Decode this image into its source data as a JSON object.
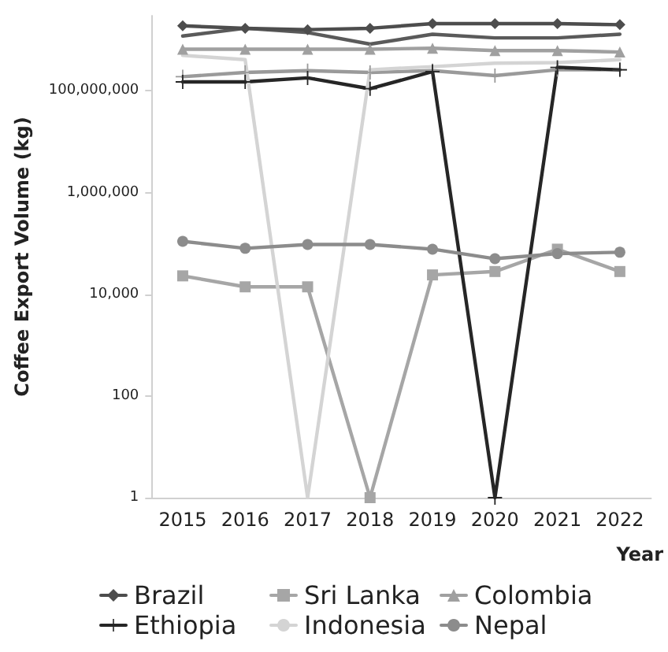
{
  "chart_data": {
    "type": "line",
    "xlabel": "Year",
    "ylabel": "Coffee Export Volume (kg)",
    "categories": [
      "2015",
      "2016",
      "2017",
      "2018",
      "2019",
      "2020",
      "2021",
      "2022"
    ],
    "log": true,
    "ylim": [
      1,
      3000000000
    ],
    "yticks": [
      1,
      100,
      {
        "value": 10000,
        "label": "10,000"
      },
      {
        "value": 1000000,
        "label": "1,000,000"
      },
      {
        "value": 100000000,
        "label": "100,000,000"
      }
    ],
    "grid": false,
    "legend": "bottom",
    "series": [
      {
        "color": "#5a5a5a",
        "marker": "none",
        "values": [
          1200000000,
          1700000000,
          1400000000,
          830000000,
          1300000000,
          1100000000,
          1100000000,
          1300000000
        ]
      },
      {
        "color": "#9a9a9a",
        "marker": "cross",
        "values": [
          190000000,
          230000000,
          250000000,
          230000000,
          250000000,
          200000000,
          260000000,
          260000000
        ]
      },
      {
        "name": "Brazil",
        "color": "#4d4d4d",
        "marker": "diamond",
        "values": [
          1900000000,
          1700000000,
          1600000000,
          1700000000,
          2100000000,
          2100000000,
          2100000000,
          2000000000
        ]
      },
      {
        "name": "Sri Lanka",
        "color": "#a6a6a6",
        "marker": "square",
        "values": [
          23000,
          14000,
          14000,
          1,
          24000,
          28000,
          77000,
          28000
        ]
      },
      {
        "name": "Colombia",
        "color": "#a0a0a0",
        "marker": "triangle",
        "values": [
          660000000,
          660000000,
          660000000,
          660000000,
          690000000,
          620000000,
          620000000,
          580000000
        ]
      },
      {
        "name": "Ethiopia",
        "color": "#262626",
        "marker": "cross",
        "values": [
          150000000,
          150000000,
          180000000,
          110000000,
          240000000,
          1,
          290000000,
          260000000
        ]
      },
      {
        "name": "Indonesia",
        "color": "#d4d4d4",
        "marker": "none",
        "values": [
          500000000,
          410000000,
          1,
          260000000,
          300000000,
          350000000,
          360000000,
          410000000
        ]
      },
      {
        "name": "Nepal",
        "color": "#8c8c8c",
        "marker": "circle",
        "values": [
          110000,
          80000,
          95000,
          95000,
          77000,
          50000,
          63000,
          67000
        ]
      }
    ]
  }
}
